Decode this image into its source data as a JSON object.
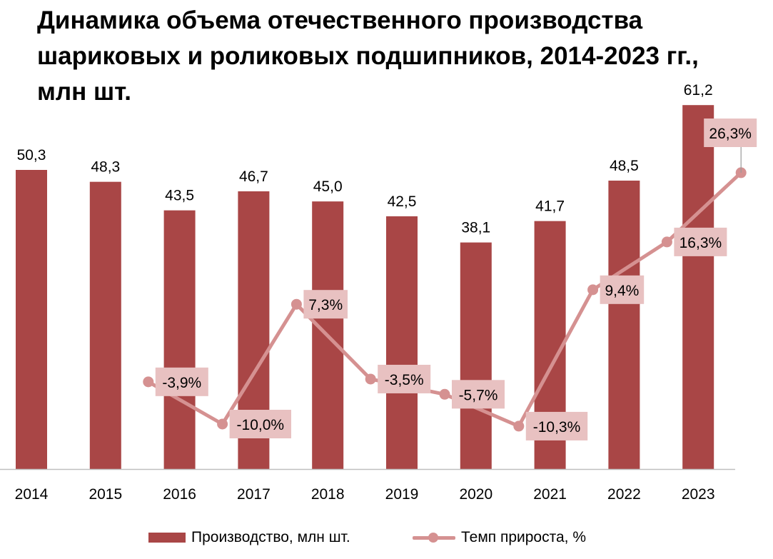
{
  "chart_data": {
    "type": "bar+line",
    "title_lines": [
      "Динамика объема отечественного производства",
      "шариковых и роликовых подшипников, 2014-2023 гг.,",
      "млн шт."
    ],
    "categories": [
      "2014",
      "2015",
      "2016",
      "2017",
      "2018",
      "2019",
      "2020",
      "2021",
      "2022",
      "2023"
    ],
    "bar_series": {
      "name": "Производство, млн шт.",
      "values": [
        50.3,
        48.3,
        43.5,
        46.7,
        45.0,
        42.5,
        38.1,
        41.7,
        48.5,
        61.2
      ],
      "labels": [
        "50,3",
        "48,3",
        "43,5",
        "46,7",
        "45,0",
        "42,5",
        "38,1",
        "41,7",
        "48,5",
        "61,2"
      ],
      "ylim": [
        0,
        65
      ]
    },
    "line_series": {
      "name": "Темп прироста, %",
      "values": [
        null,
        -3.9,
        -10.0,
        7.3,
        -3.5,
        -5.7,
        -10.3,
        9.4,
        16.3,
        26.3
      ],
      "labels": [
        "",
        "-3,9%",
        "-10,0%",
        "7,3%",
        "-3,5%",
        "-5,7%",
        "-10,3%",
        "9,4%",
        "16,3%",
        "26,3%"
      ],
      "ylim": [
        -15,
        30
      ]
    },
    "legend": {
      "position": "bottom",
      "items": [
        "Производство, млн шт.",
        "Темп прироста, %"
      ]
    },
    "colors": {
      "bar": "#a94646",
      "line": "#d59191",
      "label_box": "#e8c1c1",
      "axis": "#bfbfbf",
      "text": "#000000"
    }
  }
}
